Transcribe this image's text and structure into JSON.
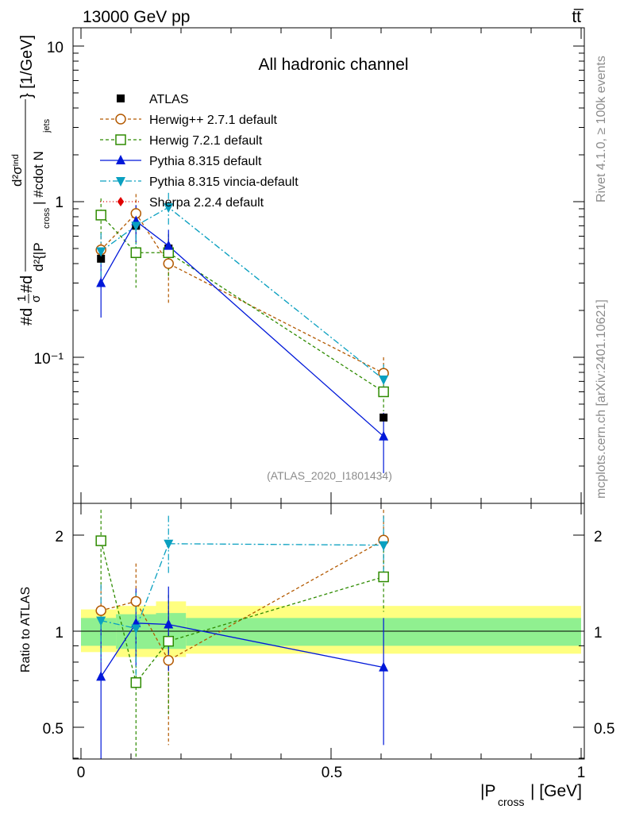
{
  "chart_data": {
    "type": "line",
    "header_left": "13000 GeV pp",
    "header_right": "tt̅",
    "title": "All hadronic channel",
    "watermark": "(ATLAS_2020_I1801434)",
    "side_text_top": "Rivet 4.1.0, ≥ 100k events",
    "side_text_bottom": "mcplots.cern.ch [arXiv:2401.10621]",
    "ylabel_main": "#d¹/σ #d d²σᴵᴺᵈ / d²{|P_cross| #cdot N_jets} [1/GeV]",
    "ylabel_main_parts": {
      "frac1": "#d",
      "frac1_num": "1",
      "frac1_den": "σ",
      "frac2": "#d",
      "num": "d²σᶦⁿᵈ",
      "den": "d²{|P",
      "den_sub": "cross",
      "den_rest": "| #cdot N",
      "den_sub2": "jets",
      "tail": "} [1/GeV]"
    },
    "ylabel_ratio": "Ratio to ATLAS",
    "xlabel": "|P",
    "xlabel_sub": "cross",
    "xlabel_tail": "| [GeV]",
    "xlim": [
      0,
      1
    ],
    "ylim_main": [
      0.013,
      13
    ],
    "ylim_ratio": [
      0.4,
      2.4
    ],
    "x_ticks": [
      "0",
      "0.5",
      "1"
    ],
    "y_ticks_main": [
      "10",
      "1",
      "10⁻¹"
    ],
    "y_ticks_ratio": [
      "2",
      "1",
      "0.5"
    ],
    "reference": {
      "name": "ATLAS",
      "x": [
        0.04,
        0.11,
        0.175,
        0.605
      ],
      "values": [
        0.43,
        0.7,
        0.5,
        0.041
      ],
      "bins": [
        [
          0.0,
          0.07
        ],
        [
          0.07,
          0.15
        ],
        [
          0.15,
          0.21
        ],
        [
          0.21,
          1.0
        ]
      ],
      "band_inner": [
        [
          0.9,
          1.1
        ],
        [
          0.88,
          1.13
        ],
        [
          0.88,
          1.14
        ],
        [
          0.9,
          1.1
        ]
      ],
      "band_outer": [
        [
          0.86,
          1.17
        ],
        [
          0.83,
          1.2
        ],
        [
          0.83,
          1.24
        ],
        [
          0.85,
          1.2
        ]
      ]
    },
    "series": [
      {
        "name": "Herwig++ 2.7.1 default",
        "color": "#b35900",
        "dash": "4,3",
        "marker": "circle-open",
        "values": [
          0.49,
          0.84,
          0.4,
          0.079
        ],
        "err_lo": [
          0.4,
          0.58,
          0.22,
          0.06
        ],
        "err_hi": [
          0.6,
          1.12,
          0.58,
          0.1
        ],
        "ratio": [
          1.16,
          1.24,
          0.81,
          1.93
        ],
        "ratio_lo": [
          0.93,
          0.86,
          0.44,
          1.5
        ],
        "ratio_hi": [
          1.39,
          1.63,
          1.16,
          2.4
        ]
      },
      {
        "name": "Herwig 7.2.1 default",
        "color": "#2e8b00",
        "dash": "4,3",
        "marker": "square-open",
        "values": [
          0.82,
          0.47,
          0.47,
          0.06
        ],
        "err_lo": [
          0.6,
          0.28,
          0.32,
          0.045
        ],
        "err_hi": [
          1.05,
          0.66,
          0.62,
          0.075
        ],
        "ratio": [
          1.92,
          0.69,
          0.93,
          1.48
        ],
        "ratio_lo": [
          1.4,
          0.38,
          0.55,
          1.15
        ],
        "ratio_hi": [
          2.4,
          1.0,
          1.3,
          1.8
        ]
      },
      {
        "name": "Pythia 8.315 default",
        "color": "#0018d9",
        "dash": "",
        "marker": "triangle-up",
        "values": [
          0.3,
          0.75,
          0.52,
          0.031
        ],
        "err_lo": [
          0.18,
          0.55,
          0.38,
          0.018
        ],
        "err_hi": [
          0.42,
          0.95,
          0.66,
          0.044
        ],
        "ratio": [
          0.72,
          1.06,
          1.05,
          0.77
        ],
        "ratio_lo": [
          0.37,
          0.78,
          0.75,
          0.44
        ],
        "ratio_hi": [
          1.08,
          1.36,
          1.38,
          1.1
        ]
      },
      {
        "name": "Pythia 8.315 vincia-default",
        "color": "#0aa0c0",
        "dash": "8,3,2,3",
        "marker": "triangle-down",
        "values": [
          0.48,
          0.7,
          0.92,
          0.072
        ],
        "err_lo": [
          0.33,
          0.5,
          0.7,
          0.055
        ],
        "err_hi": [
          0.63,
          0.9,
          1.14,
          0.09
        ],
        "ratio": [
          1.08,
          1.02,
          1.88,
          1.86
        ],
        "ratio_lo": [
          0.8,
          0.72,
          1.5,
          1.45
        ],
        "ratio_hi": [
          1.4,
          1.32,
          2.3,
          2.3
        ]
      },
      {
        "name": "Sherpa 2.2.4 default",
        "color": "#e00000",
        "dash": "1,3",
        "marker": "diamond",
        "values": [],
        "err_lo": [],
        "err_hi": [],
        "ratio": [],
        "ratio_lo": [],
        "ratio_hi": []
      }
    ]
  }
}
